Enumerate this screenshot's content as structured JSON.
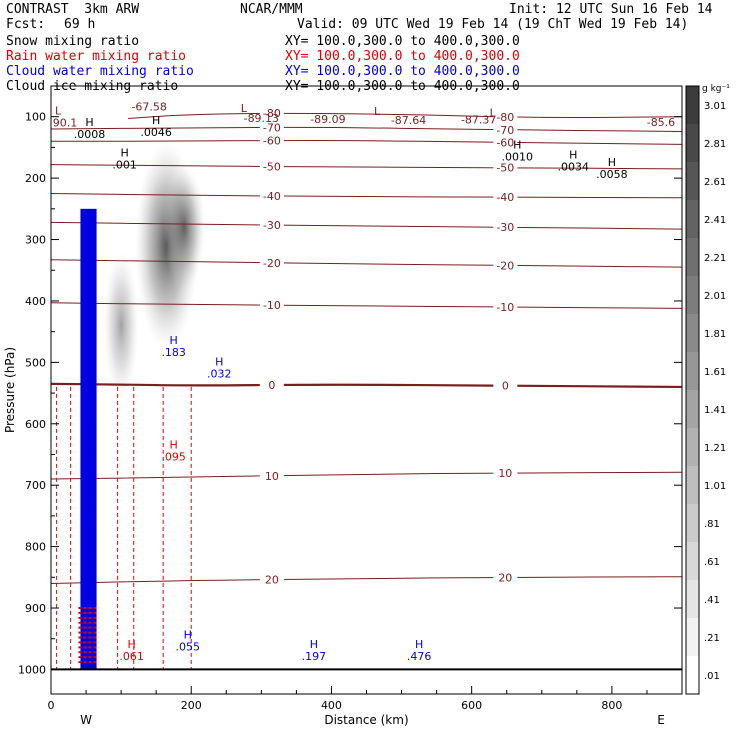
{
  "header": {
    "model": "CONTRAST  3km ARW",
    "center": "NCAR/MMM",
    "init": "Init: 12 UTC Sun 16 Feb 14",
    "fcst_label": "Fcst:",
    "fcst_value": "69 h",
    "valid": "Valid: 09 UTC Wed 19 Feb 14 (19 ChT Wed 19 Feb 14)"
  },
  "legend": [
    {
      "name": "Snow mixing ratio",
      "xy": "XY= 100.0,300.0 to 400.0,300.0",
      "color": "#000000"
    },
    {
      "name": "Rain water mixing ratio",
      "xy": "XY= 100.0,300.0 to 400.0,300.0",
      "color": "#e00000"
    },
    {
      "name": "Cloud water mixing ratio",
      "xy": "XY= 100.0,300.0 to 400.0,300.0",
      "color": "#0000e0"
    },
    {
      "name": "Cloud ice mixing ratio",
      "xy": "XY= 100.0,300.0 to 400.0,300.0",
      "color": "#000000"
    }
  ],
  "colors": {
    "temperature": "#7a1e1e",
    "rain": "#e00000",
    "cloud_water": "#0000e0",
    "snow_shade": "#444444"
  },
  "chart_data": {
    "type": "heatmap",
    "xlabel": "Distance (km)",
    "ylabel": "Pressure (hPa)",
    "xlim": [
      0,
      900
    ],
    "ylim": [
      1040,
      50
    ],
    "x_ticks": [
      0,
      200,
      400,
      600,
      800
    ],
    "y_ticks": [
      100,
      200,
      300,
      400,
      500,
      600,
      700,
      800,
      900,
      1000
    ],
    "end_labels": {
      "left": "W",
      "right": "E"
    },
    "colorbar": {
      "unit": "g kg⁻¹",
      "labels": [
        "3.01",
        "2.81",
        "2.61",
        "2.41",
        "2.21",
        "2.01",
        "1.81",
        "1.61",
        "1.41",
        "1.21",
        "1.01",
        ".81",
        ".61",
        ".41",
        ".21",
        ".01"
      ]
    },
    "temperature_contours": [
      {
        "label": "-80",
        "points": [
          [
            110,
            103
          ],
          [
            180,
            97
          ],
          [
            300,
            94
          ],
          [
            500,
            96
          ],
          [
            700,
            102
          ],
          [
            900,
            100
          ]
        ]
      },
      {
        "label": "-70",
        "points": [
          [
            0,
            120
          ],
          [
            200,
            118
          ],
          [
            400,
            117
          ],
          [
            600,
            121
          ],
          [
            900,
            124
          ]
        ]
      },
      {
        "label": "-60",
        "points": [
          [
            0,
            140
          ],
          [
            200,
            140
          ],
          [
            400,
            138
          ],
          [
            650,
            142
          ],
          [
            900,
            145
          ]
        ]
      },
      {
        "label": "-50",
        "points": [
          [
            0,
            178
          ],
          [
            200,
            180
          ],
          [
            400,
            182
          ],
          [
            650,
            183
          ],
          [
            900,
            185
          ]
        ]
      },
      {
        "label": "-40",
        "points": [
          [
            0,
            225
          ],
          [
            200,
            228
          ],
          [
            400,
            230
          ],
          [
            650,
            231
          ],
          [
            900,
            232
          ]
        ]
      },
      {
        "label": "-30",
        "points": [
          [
            0,
            272
          ],
          [
            200,
            275
          ],
          [
            450,
            278
          ],
          [
            650,
            280
          ],
          [
            900,
            283
          ]
        ]
      },
      {
        "label": "-20",
        "points": [
          [
            0,
            333
          ],
          [
            200,
            336
          ],
          [
            450,
            340
          ],
          [
            650,
            342
          ],
          [
            900,
            345
          ]
        ]
      },
      {
        "label": "-10",
        "points": [
          [
            0,
            403
          ],
          [
            200,
            406
          ],
          [
            450,
            408
          ],
          [
            650,
            410
          ],
          [
            900,
            412
          ]
        ]
      },
      {
        "label": "0",
        "points": [
          [
            0,
            535
          ],
          [
            100,
            536
          ],
          [
            200,
            538
          ],
          [
            400,
            536
          ],
          [
            650,
            538
          ],
          [
            900,
            540
          ]
        ]
      },
      {
        "label": "10",
        "points": [
          [
            0,
            690
          ],
          [
            200,
            687
          ],
          [
            450,
            682
          ],
          [
            650,
            680
          ],
          [
            900,
            679
          ]
        ]
      },
      {
        "label": "20",
        "points": [
          [
            0,
            860
          ],
          [
            200,
            855
          ],
          [
            450,
            852
          ],
          [
            650,
            850
          ],
          [
            900,
            849
          ]
        ]
      }
    ],
    "pressure_labels": [
      {
        "text": "-67.58",
        "x": 140,
        "p": 90
      },
      {
        "text": "-89.13",
        "x": 300,
        "p": 109
      },
      {
        "text": "-89.09",
        "x": 395,
        "p": 110
      },
      {
        "text": "-87.64",
        "x": 510,
        "p": 112
      },
      {
        "text": "-87.37",
        "x": 610,
        "p": 111
      },
      {
        "text": "-85.6",
        "x": 870,
        "p": 115
      },
      {
        "text": "90.1",
        "x": 20,
        "p": 116
      }
    ],
    "extrema": [
      {
        "type": "L",
        "x": 10,
        "p": 96,
        "color": "#7a1e1e"
      },
      {
        "type": "L",
        "x": 275,
        "p": 92,
        "color": "#7a1e1e"
      },
      {
        "type": "L",
        "x": 465,
        "p": 97,
        "color": "#7a1e1e"
      },
      {
        "type": "L",
        "x": 630,
        "p": 100,
        "color": "#7a1e1e"
      },
      {
        "type": "H",
        "x": 150,
        "p": 112,
        "value": ".0046",
        "color": "#000000"
      },
      {
        "type": "H",
        "x": 55,
        "p": 115,
        "value": ".0008",
        "color": "#000000"
      },
      {
        "type": "H",
        "x": 665,
        "p": 152,
        "value": ".0010",
        "color": "#000000"
      },
      {
        "type": "H",
        "x": 745,
        "p": 168,
        "value": ".0034",
        "color": "#000000"
      },
      {
        "type": "H",
        "x": 800,
        "p": 180,
        "value": ".0058",
        "color": "#000000"
      },
      {
        "type": "H",
        "x": 105,
        "p": 165,
        "value": ".001",
        "color": "#000000"
      },
      {
        "type": "H",
        "x": 175,
        "p": 470,
        "value": ".183",
        "color": "#0000e0"
      },
      {
        "type": "H",
        "x": 240,
        "p": 505,
        "value": ".032",
        "color": "#0000e0"
      },
      {
        "type": "H",
        "x": 175,
        "p": 640,
        "value": ".095",
        "color": "#e00000"
      },
      {
        "type": "H",
        "x": 195,
        "p": 950,
        "value": ".055",
        "color": "#0000e0"
      },
      {
        "type": "H",
        "x": 375,
        "p": 965,
        "value": ".197",
        "color": "#0000e0"
      },
      {
        "type": "H",
        "x": 525,
        "p": 965,
        "value": ".476",
        "color": "#0000e0"
      },
      {
        "type": "H",
        "x": 115,
        "p": 965,
        "value": ".061",
        "color": "#e00000"
      }
    ],
    "snow_plume": [
      {
        "x": 165,
        "p_top": 140,
        "p_bottom": 480,
        "width": 45,
        "peak": 2.6
      },
      {
        "x": 190,
        "p_top": 180,
        "p_bottom": 380,
        "width": 30,
        "peak": 2.2
      },
      {
        "x": 100,
        "p_top": 320,
        "p_bottom": 560,
        "width": 25,
        "peak": 1.4
      }
    ],
    "cloud_water_core": {
      "x_left": 42,
      "x_right": 65,
      "p_top": 250,
      "p_bottom": 1000
    },
    "rain_lines_x": [
      8,
      28,
      60,
      95,
      118,
      160,
      200
    ]
  }
}
